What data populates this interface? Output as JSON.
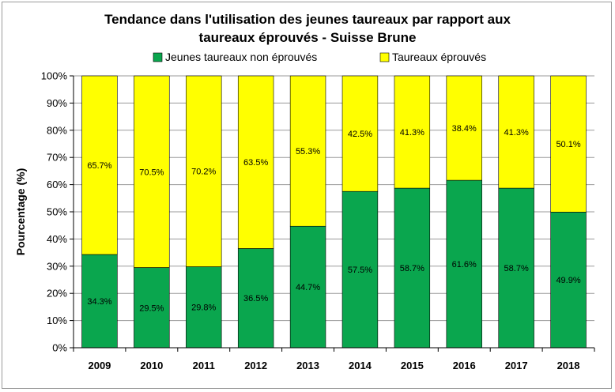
{
  "chart_data": {
    "type": "bar",
    "stacked": true,
    "title_lines": [
      "Tendance dans l'utilisation des jeunes taureaux par rapport aux",
      "taureaux éprouvés - Suisse Brune"
    ],
    "xlabel": "",
    "ylabel": "Pourcentage (%)",
    "ylim": [
      0,
      100
    ],
    "yticks": [
      "0%",
      "10%",
      "20%",
      "30%",
      "40%",
      "50%",
      "60%",
      "70%",
      "80%",
      "90%",
      "100%"
    ],
    "grid": true,
    "legend_position": "top",
    "categories": [
      "2009",
      "2010",
      "2011",
      "2012",
      "2013",
      "2014",
      "2015",
      "2016",
      "2017",
      "2018"
    ],
    "series": [
      {
        "name": "Jeunes taureaux non éprouvés",
        "color": "#0aa64e",
        "values": [
          34.3,
          29.5,
          29.8,
          36.5,
          44.7,
          57.5,
          58.7,
          61.6,
          58.7,
          49.9
        ],
        "labels": [
          "34.3%",
          "29.5%",
          "29.8%",
          "36.5%",
          "44.7%",
          "57.5%",
          "58.7%",
          "61.6%",
          "58.7%",
          "49.9%"
        ]
      },
      {
        "name": "Taureaux éprouvés",
        "color": "#ffff00",
        "values": [
          65.7,
          70.5,
          70.2,
          63.5,
          55.3,
          42.5,
          41.3,
          38.4,
          41.3,
          50.1
        ],
        "labels": [
          "65.7%",
          "70.5%",
          "70.2%",
          "63.5%",
          "55.3%",
          "42.5%",
          "41.3%",
          "38.4%",
          "41.3%",
          "50.1%"
        ]
      }
    ]
  }
}
